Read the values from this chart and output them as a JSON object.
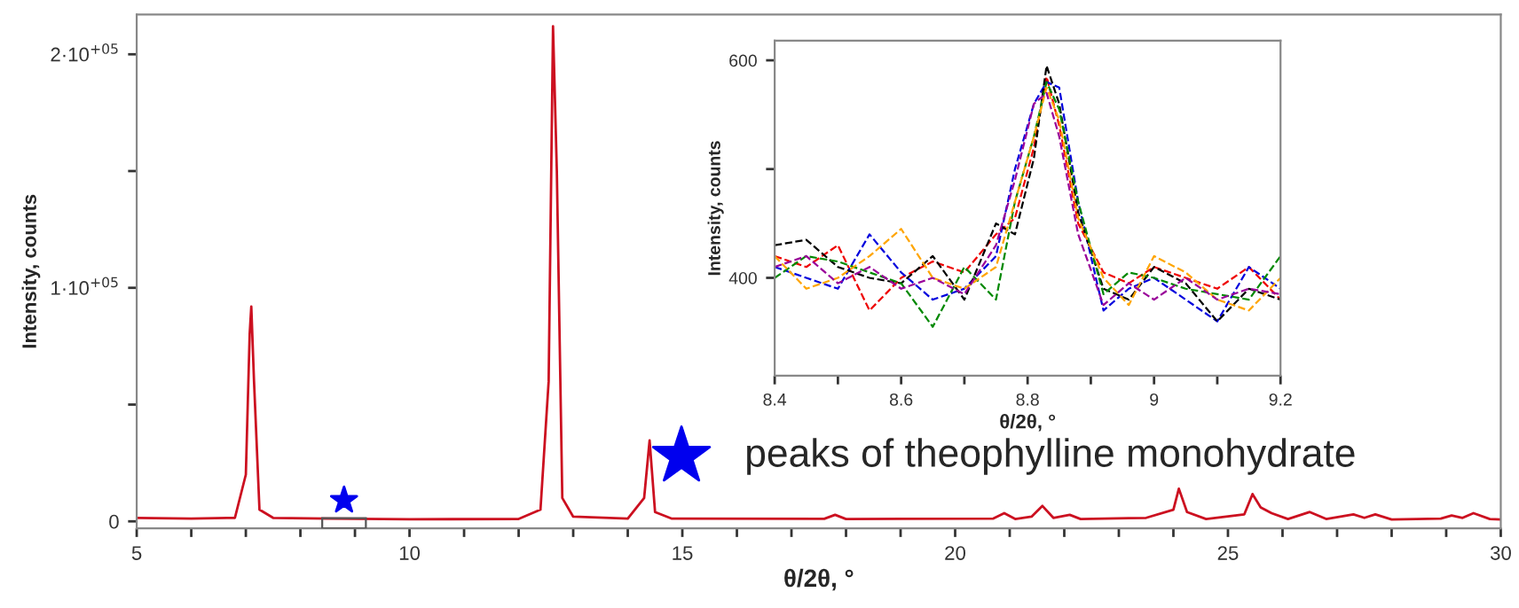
{
  "chart_data": [
    {
      "type": "line",
      "xlabel": "θ/2θ, °",
      "ylabel": "Intensity, counts",
      "xlim": [
        5,
        30
      ],
      "ylim": [
        -3000,
        217000
      ],
      "xticks": [
        5,
        {
          "value": 6,
          "label": null
        },
        {
          "value": 7,
          "label": null
        },
        {
          "value": 8,
          "label": null
        },
        {
          "value": 9,
          "label": null
        },
        10,
        {
          "value": 11,
          "label": null
        },
        {
          "value": 12,
          "label": null
        },
        {
          "value": 13,
          "label": null
        },
        {
          "value": 14,
          "label": null
        },
        15,
        {
          "value": 16,
          "label": null
        },
        {
          "value": 17,
          "label": null
        },
        {
          "value": 18,
          "label": null
        },
        {
          "value": 19,
          "label": null
        },
        20,
        {
          "value": 21,
          "label": null
        },
        {
          "value": 22,
          "label": null
        },
        {
          "value": 23,
          "label": null
        },
        {
          "value": 24,
          "label": null
        },
        25,
        {
          "value": 26,
          "label": null
        },
        {
          "value": 27,
          "label": null
        },
        {
          "value": 28,
          "label": null
        },
        {
          "value": 29,
          "label": null
        },
        30
      ],
      "yticks": [
        0,
        {
          "value": 50000,
          "label": null
        },
        {
          "value": 100000,
          "label": "1·10$^{+05}$"
        },
        {
          "value": 150000,
          "label": null
        },
        {
          "value": 200000,
          "label": "2·10$^{+05}$"
        }
      ],
      "grid": false,
      "legend": "bottom right",
      "marker": "none",
      "line_style": "solid",
      "series": [
        {
          "color": "#cc1020",
          "x": [
            5,
            6,
            6.8,
            7.0,
            7.07,
            7.1,
            7.15,
            7.25,
            7.5,
            8.5,
            10,
            12,
            12.4,
            12.55,
            12.63,
            12.7,
            12.8,
            13,
            14,
            14.3,
            14.4,
            14.5,
            14.8,
            17.6,
            17.8,
            18.0,
            20.7,
            20.9,
            21.1,
            21.4,
            21.6,
            21.8,
            22.1,
            22.3,
            23.5,
            24.0,
            24.1,
            24.25,
            24.6,
            25.3,
            25.45,
            25.6,
            25.8,
            26.1,
            26.5,
            26.8,
            27.3,
            27.5,
            27.7,
            28.0,
            28.9,
            29.1,
            29.3,
            29.5,
            29.8,
            30
          ],
          "values": [
            1500,
            1200,
            1500,
            20000,
            80000,
            92000,
            60000,
            5000,
            1500,
            1200,
            900,
            1000,
            5000,
            60000,
            212000,
            150000,
            10000,
            2000,
            1200,
            10000,
            34700,
            4000,
            1200,
            1100,
            2800,
            1000,
            1200,
            3500,
            1000,
            2000,
            6600,
            1500,
            2800,
            1000,
            1500,
            5000,
            14000,
            4000,
            1000,
            3000,
            11700,
            6000,
            3500,
            1000,
            4000,
            1000,
            3000,
            1500,
            3000,
            800,
            1200,
            2500,
            1500,
            3500,
            1000,
            800
          ]
        },
        {
          "type": "scatter",
          "name": "peaks of theophylline monohydrate",
          "color": "#0000ee",
          "marker": "star",
          "x": [
            8.8
          ],
          "values": [
            9000
          ]
        }
      ]
    },
    {
      "type": "line",
      "xlabel": "θ/2θ, °",
      "ylabel": "Intensity, counts",
      "xlim": [
        8.4,
        9.2
      ],
      "ylim": [
        310,
        618
      ],
      "xticks": [
        8.4,
        {
          "value": 8.5,
          "label": null
        },
        8.6,
        {
          "value": 8.7,
          "label": null
        },
        8.8,
        {
          "value": 8.9,
          "label": null
        },
        {
          "value": 9,
          "label": "9"
        },
        {
          "value": 9.1,
          "label": null
        },
        9.2
      ],
      "yticks": [
        400,
        {
          "value": 500,
          "label": null
        },
        600
      ],
      "grid": false,
      "marker": "none",
      "line_style": "dashed",
      "x": [
        8.4,
        8.45,
        8.5,
        8.55,
        8.6,
        8.65,
        8.7,
        8.75,
        8.78,
        8.81,
        8.83,
        8.85,
        8.88,
        8.92,
        8.96,
        9.0,
        9.05,
        9.1,
        9.15,
        9.2
      ],
      "series": [
        {
          "color": "#ee0000",
          "values": [
            420,
            410,
            430,
            370,
            400,
            415,
            405,
            440,
            455,
            520,
            585,
            540,
            450,
            405,
            395,
            410,
            400,
            390,
            410,
            380
          ]
        },
        {
          "color": "#0000dd",
          "values": [
            410,
            400,
            390,
            440,
            405,
            380,
            390,
            420,
            500,
            560,
            580,
            575,
            470,
            370,
            390,
            400,
            380,
            360,
            410,
            390
          ]
        },
        {
          "color": "#000000",
          "values": [
            430,
            435,
            410,
            400,
            395,
            420,
            380,
            450,
            440,
            510,
            595,
            560,
            460,
            390,
            380,
            410,
            395,
            360,
            390,
            380
          ]
        },
        {
          "color": "#008800",
          "values": [
            400,
            420,
            415,
            405,
            395,
            355,
            410,
            380,
            470,
            530,
            580,
            555,
            470,
            385,
            405,
            400,
            390,
            385,
            380,
            420
          ]
        },
        {
          "color": "#ffa500",
          "values": [
            420,
            390,
            400,
            420,
            445,
            400,
            390,
            410,
            470,
            530,
            575,
            545,
            455,
            400,
            375,
            420,
            405,
            380,
            370,
            400
          ]
        },
        {
          "color": "#990099",
          "values": [
            410,
            420,
            395,
            410,
            390,
            400,
            385,
            430,
            490,
            560,
            570,
            530,
            440,
            375,
            395,
            380,
            400,
            380,
            390,
            385
          ]
        }
      ]
    }
  ]
}
